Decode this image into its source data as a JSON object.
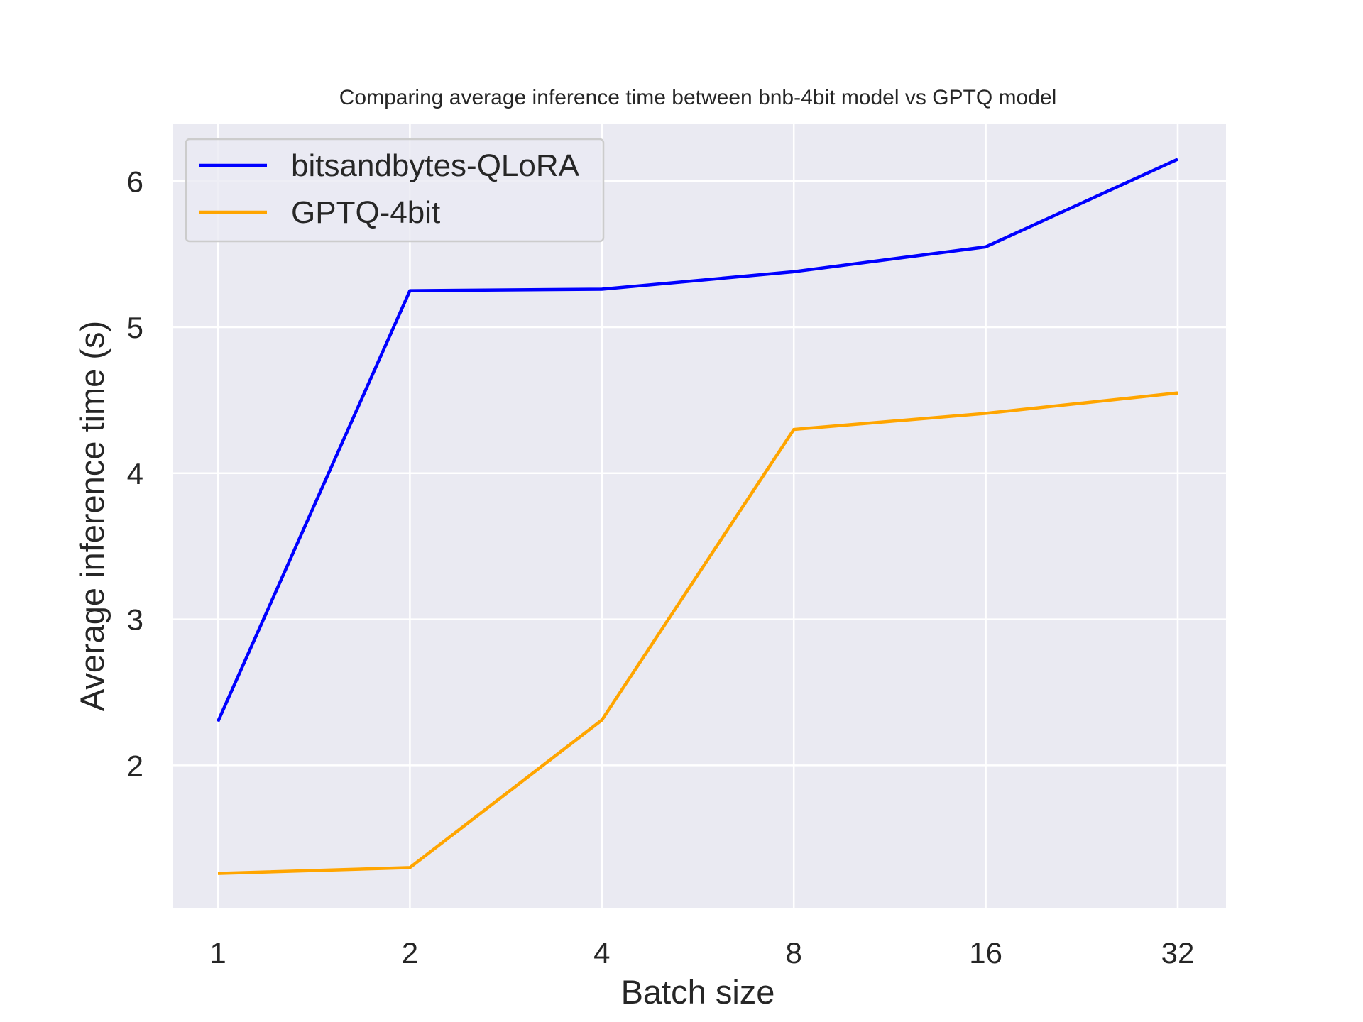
{
  "chart_data": {
    "type": "line",
    "title": "Comparing average inference time between bnb-4bit model vs GPTQ model",
    "xlabel": "Batch size",
    "ylabel": "Average inference time (s)",
    "categories": [
      "1",
      "2",
      "4",
      "8",
      "16",
      "32"
    ],
    "x": [
      1,
      2,
      4,
      8,
      16,
      32
    ],
    "x_scale": "log2 (categorical spacing)",
    "ylim": [
      1.02,
      6.39
    ],
    "yticks": [
      "2",
      "3",
      "4",
      "5",
      "6"
    ],
    "grid": true,
    "legend_position": "top-left",
    "background": "#eaeaf2",
    "series": [
      {
        "name": "bitsandbytes-QLoRA",
        "color": "#0000ff",
        "values": [
          2.3,
          5.25,
          5.26,
          5.38,
          5.55,
          6.15
        ]
      },
      {
        "name": "GPTQ-4bit",
        "color": "#ffa500",
        "values": [
          1.26,
          1.3,
          2.31,
          4.3,
          4.41,
          4.55
        ]
      }
    ]
  }
}
